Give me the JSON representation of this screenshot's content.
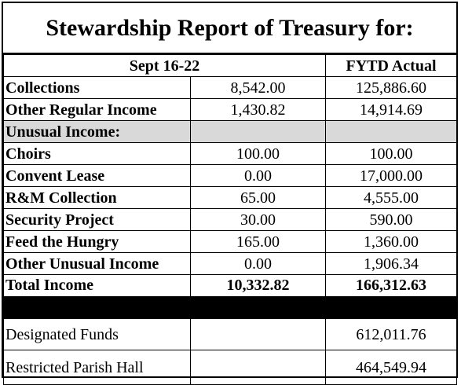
{
  "title": "Stewardship Report of Treasury for:",
  "header": {
    "period": "Sept 16-22",
    "ytd": "FYTD Actual"
  },
  "rows": [
    {
      "label": "Collections",
      "week": "8,542.00",
      "ytd": "125,886.60"
    },
    {
      "label": "Other Regular Income",
      "week": "1,430.82",
      "ytd": "14,914.69"
    }
  ],
  "unusual_header": "Unusual Income:",
  "unusual_rows": [
    {
      "label": "Choirs",
      "week": "100.00",
      "ytd": "100.00"
    },
    {
      "label": "Convent Lease",
      "week": "0.00",
      "ytd": "17,000.00"
    },
    {
      "label": "R&M Collection",
      "week": "65.00",
      "ytd": "4,555.00"
    },
    {
      "label": "Security Project",
      "week": "30.00",
      "ytd": "590.00"
    },
    {
      "label": "Feed the Hungry",
      "week": "165.00",
      "ytd": "1,360.00"
    },
    {
      "label": "Other Unusual Income",
      "week": "0.00",
      "ytd": "1,906.34"
    }
  ],
  "total": {
    "label": "Total Income",
    "week": "10,332.82",
    "ytd": "166,312.63"
  },
  "funds": [
    {
      "label": "Designated Funds",
      "ytd": "612,011.76"
    },
    {
      "label": "Restricted Parish Hall",
      "ytd": "464,549.94"
    }
  ]
}
